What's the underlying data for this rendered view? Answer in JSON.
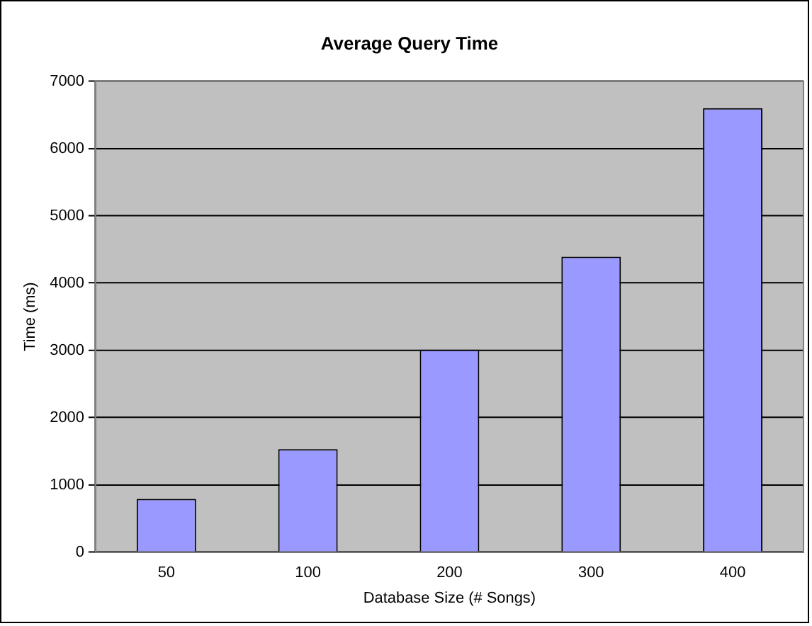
{
  "chart_data": {
    "type": "bar",
    "title": "Average Query Time",
    "xlabel": "Database Size (# Songs)",
    "ylabel": "Time (ms)",
    "categories": [
      "50",
      "100",
      "200",
      "300",
      "400"
    ],
    "values": [
      790,
      1530,
      3010,
      4390,
      6600
    ],
    "color": "#9999ff",
    "ylim": [
      0,
      7000
    ],
    "yticks": [
      0,
      1000,
      2000,
      3000,
      4000,
      5000,
      6000,
      7000
    ],
    "grid": "y",
    "legend": false
  }
}
